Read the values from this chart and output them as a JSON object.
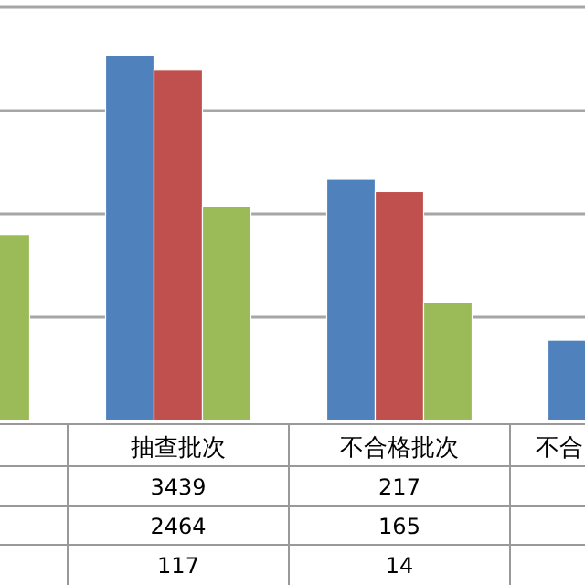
{
  "chart_data": {
    "type": "bar",
    "categories": [
      null,
      "抽查批次",
      "不合格批次",
      "不合"
    ],
    "series": [
      {
        "color": "#4f81bd",
        "values": [
          null,
          3439,
          217,
          6
        ],
        "value_labels": [
          null,
          "3439",
          "217",
          null
        ]
      },
      {
        "color": "#c0504d",
        "values": [
          null,
          2464,
          165,
          null
        ],
        "value_labels": [
          null,
          "2464",
          "165",
          null
        ]
      },
      {
        "color": "#9bbb59",
        "values": [
          63,
          117,
          14,
          null
        ],
        "value_labels": [
          null,
          "117",
          "14",
          null
        ]
      }
    ],
    "log": "y",
    "ylim": [
      1,
      10000
    ],
    "grid": "y"
  }
}
